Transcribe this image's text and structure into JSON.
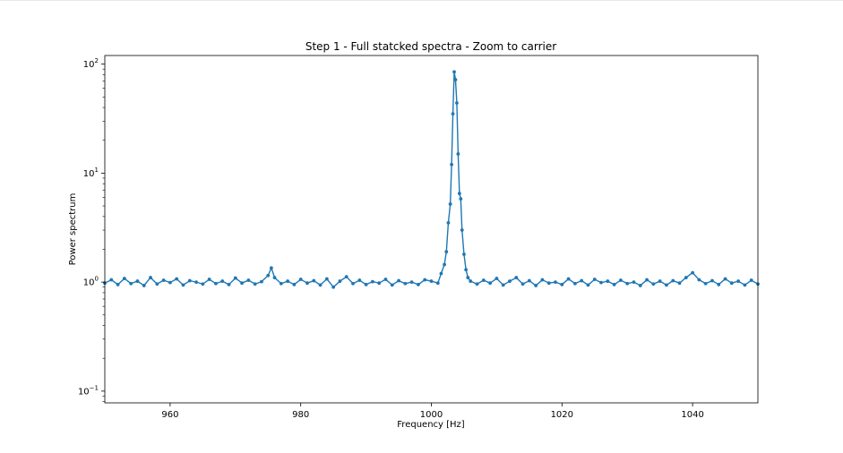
{
  "chart_data": {
    "type": "line",
    "title": "Step 1 - Full statcked spectra - Zoom to carrier",
    "xlabel": "Frequency [Hz]",
    "ylabel": "Power spectrum",
    "xlim": [
      950,
      1050
    ],
    "ylim": [
      0.078,
      120
    ],
    "yscale": "log",
    "grid": false,
    "legend": "none",
    "marker": "dot",
    "color": "#1f77b4",
    "x_ticks": [
      {
        "value": 960,
        "label": "960"
      },
      {
        "value": 980,
        "label": "980"
      },
      {
        "value": 1000,
        "label": "1000"
      },
      {
        "value": 1020,
        "label": "1020"
      },
      {
        "value": 1040,
        "label": "1040"
      }
    ],
    "y_ticks": [
      {
        "value": 0.1,
        "base": "10",
        "exp": "−1"
      },
      {
        "value": 1,
        "base": "10",
        "exp": "0"
      },
      {
        "value": 10,
        "base": "10",
        "exp": "1"
      },
      {
        "value": 100,
        "base": "10",
        "exp": "2"
      }
    ],
    "series": [
      {
        "x": [
          950,
          951,
          952,
          953,
          954,
          955,
          956,
          957,
          958,
          959,
          960,
          961,
          962,
          963,
          964,
          965,
          966,
          967,
          968,
          969,
          970,
          971,
          972,
          973,
          974,
          975,
          975.5,
          976,
          977,
          978,
          979,
          980,
          981,
          982,
          983,
          984,
          985,
          986,
          987,
          988,
          989,
          990,
          991,
          992,
          993,
          994,
          995,
          996,
          997,
          998,
          999,
          1000,
          1001,
          1001.5,
          1002,
          1002.3,
          1002.6,
          1002.9,
          1003.1,
          1003.3,
          1003.5,
          1003.7,
          1003.9,
          1004.1,
          1004.3,
          1004.5,
          1004.7,
          1005,
          1005.3,
          1005.6,
          1006,
          1007,
          1008,
          1009,
          1010,
          1011,
          1012,
          1013,
          1014,
          1015,
          1016,
          1017,
          1018,
          1019,
          1020,
          1021,
          1022,
          1023,
          1024,
          1025,
          1026,
          1027,
          1028,
          1029,
          1030,
          1031,
          1032,
          1033,
          1034,
          1035,
          1036,
          1037,
          1038,
          1039,
          1040,
          1041,
          1042,
          1043,
          1044,
          1045,
          1046,
          1047,
          1048,
          1049,
          1050
        ],
        "y": [
          0.98,
          1.05,
          0.95,
          1.08,
          0.97,
          1.02,
          0.93,
          1.1,
          0.96,
          1.04,
          0.99,
          1.07,
          0.94,
          1.03,
          1.0,
          0.96,
          1.06,
          0.97,
          1.02,
          0.95,
          1.09,
          0.98,
          1.04,
          0.96,
          1.01,
          1.15,
          1.35,
          1.1,
          0.97,
          1.02,
          0.95,
          1.06,
          0.98,
          1.03,
          0.94,
          1.07,
          0.9,
          1.02,
          1.12,
          0.97,
          1.04,
          0.95,
          1.01,
          0.98,
          1.06,
          0.94,
          1.03,
          0.97,
          1.0,
          0.95,
          1.05,
          1.02,
          0.98,
          1.2,
          1.45,
          1.9,
          3.5,
          5.2,
          12.0,
          35.0,
          85.0,
          72.0,
          44.0,
          15.0,
          6.5,
          5.8,
          3.0,
          1.8,
          1.3,
          1.1,
          1.02,
          0.96,
          1.04,
          0.98,
          1.08,
          0.94,
          1.02,
          1.1,
          0.96,
          1.03,
          0.93,
          1.05,
          0.98,
          1.0,
          0.95,
          1.07,
          0.97,
          1.03,
          0.94,
          1.06,
          0.99,
          1.02,
          0.95,
          1.04,
          0.97,
          1.0,
          0.93,
          1.05,
          0.96,
          1.02,
          0.94,
          1.03,
          0.98,
          1.1,
          1.22,
          1.05,
          0.97,
          1.03,
          0.95,
          1.07,
          0.98,
          1.02,
          0.94,
          1.04,
          0.96
        ]
      }
    ]
  }
}
